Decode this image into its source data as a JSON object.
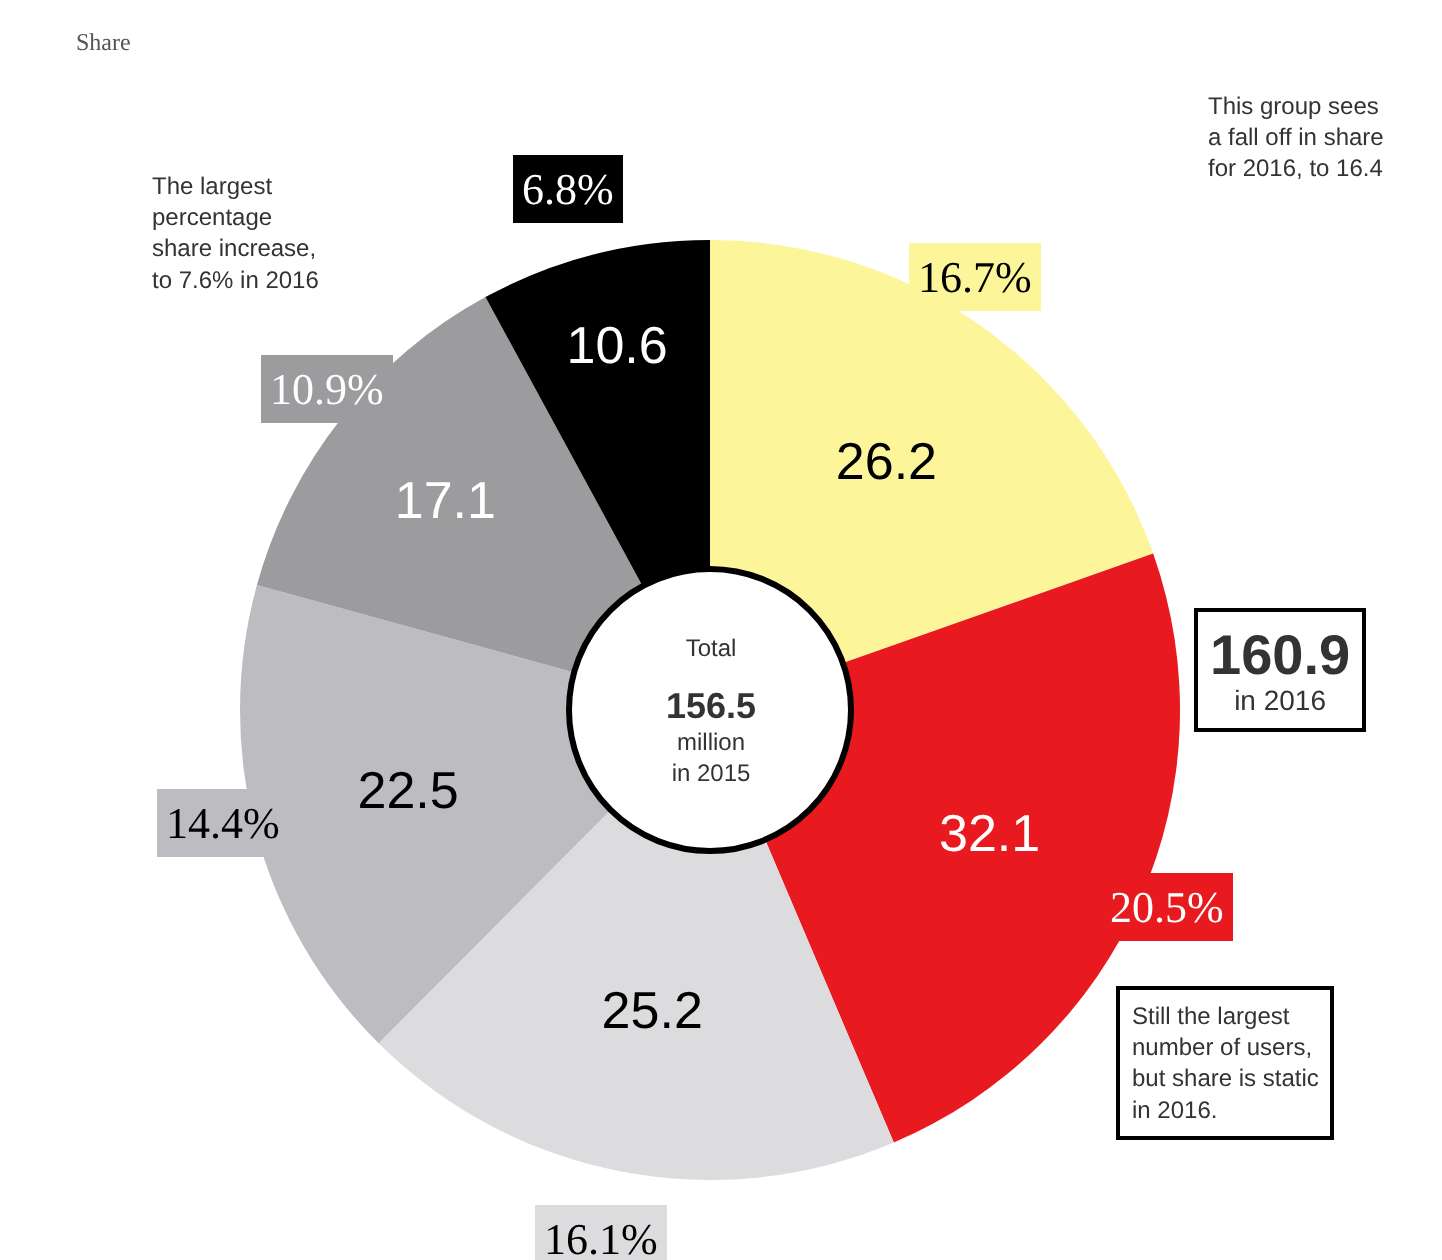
{
  "chart_data": {
    "type": "donut",
    "subtitle": "Share",
    "categories": [
      "16.7%",
      "20.5%",
      "16.1%",
      "14.4%",
      "10.9%",
      "6.8%"
    ],
    "values": [
      26.2,
      32.1,
      25.2,
      22.5,
      17.1,
      10.6
    ],
    "colors": [
      "#fdf59a",
      "#e8191f",
      "#dcdcde",
      "#bdbdc1",
      "#9c9c9f",
      "#000000"
    ],
    "data_labels": true,
    "legend": false,
    "annotations": [
      "The largest\npercentage\nshare increase,\nto 7.6% in 2016",
      "This group sees\na fall off in share\nfor 2016, to 16.4",
      "Total\n156.5\nmillion\nin 2015",
      "160.9\nin 2016",
      "Still the largest\nnumber of users,\nbut share is static\nin 2016."
    ]
  }
}
